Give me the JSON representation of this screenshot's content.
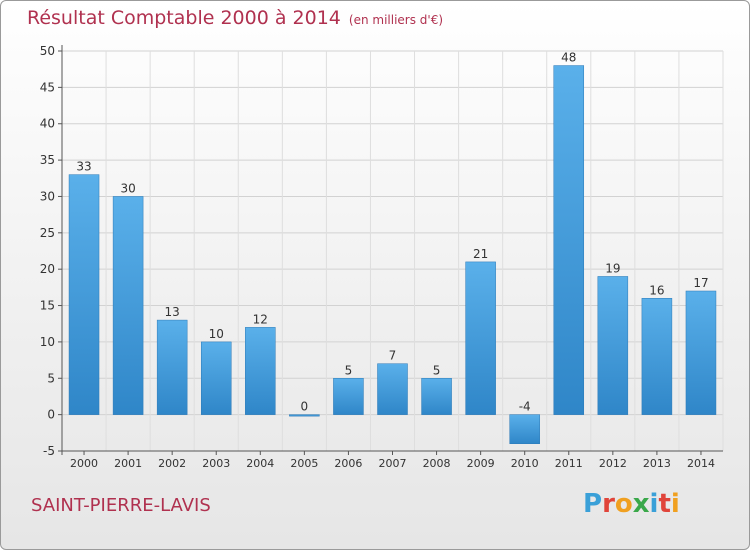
{
  "title": "Résultat Comptable 2000 à 2014",
  "subtitle": "(en milliers d'€)",
  "commune": "SAINT-PIERRE-LAVIS",
  "logo": {
    "letters": [
      "P",
      "r",
      "o",
      "x",
      "i",
      "t",
      "i"
    ],
    "colors": [
      "#3aa0d8",
      "#e0443a",
      "#f0a020",
      "#3aa84a",
      "#3aa0d8",
      "#e0443a",
      "#f0a020"
    ]
  },
  "colors": {
    "bar_light": "#5ab0ea",
    "bar_dark": "#2f86c8",
    "title": "#b0314f"
  },
  "chart_data": {
    "type": "bar",
    "categories": [
      "2000",
      "2001",
      "2002",
      "2003",
      "2004",
      "2005",
      "2006",
      "2007",
      "2008",
      "2009",
      "2010",
      "2011",
      "2012",
      "2013",
      "2014"
    ],
    "values": [
      33,
      30,
      13,
      10,
      12,
      0,
      5,
      7,
      5,
      21,
      -4,
      48,
      19,
      16,
      17
    ],
    "data_labels": [
      "33",
      "30",
      "13",
      "10",
      "12",
      "0",
      "5",
      "7",
      "5",
      "21",
      "-4",
      "48",
      "19",
      "16",
      "17"
    ],
    "yticks": [
      -5,
      0,
      5,
      10,
      15,
      20,
      25,
      30,
      35,
      40,
      45,
      50
    ],
    "ylim": [
      -5,
      50
    ],
    "grid": true
  }
}
